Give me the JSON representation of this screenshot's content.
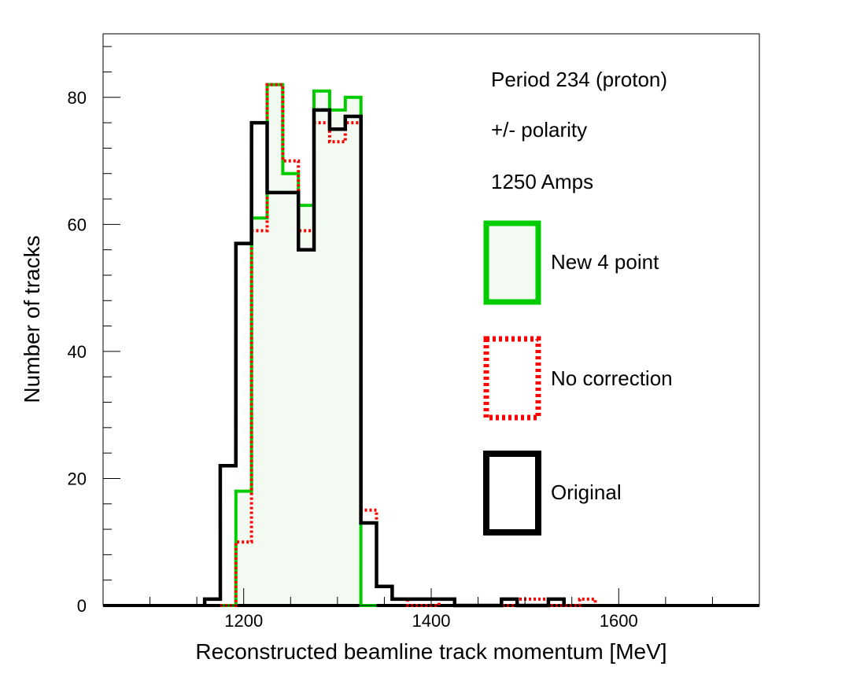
{
  "chart_data": {
    "type": "histogram",
    "xlabel": "Reconstructed beamline track momentum [MeV]",
    "ylabel": "Number of tracks",
    "xlim": [
      1050,
      1750
    ],
    "ylim": [
      0,
      90
    ],
    "grid": false,
    "legend_position": "right",
    "bin_width": 16.67,
    "x_ticks": [
      1200,
      1400,
      1600
    ],
    "y_ticks": [
      0,
      20,
      40,
      60,
      80
    ],
    "annotations": [
      "Period 234 (proton)",
      "+/- polarity",
      "1250 Amps"
    ],
    "series": [
      {
        "name": "New 4 point",
        "color": "#00cc00",
        "fill": "#f2faf2",
        "style": "solid-filled",
        "bins": [
          {
            "x": 1183.3,
            "y": 0
          },
          {
            "x": 1200.0,
            "y": 18
          },
          {
            "x": 1216.7,
            "y": 61
          },
          {
            "x": 1233.3,
            "y": 82
          },
          {
            "x": 1250.0,
            "y": 68
          },
          {
            "x": 1266.7,
            "y": 63
          },
          {
            "x": 1283.3,
            "y": 81
          },
          {
            "x": 1300.0,
            "y": 78
          },
          {
            "x": 1316.7,
            "y": 80
          },
          {
            "x": 1333.3,
            "y": 0
          }
        ]
      },
      {
        "name": "No correction",
        "color": "#ff0000",
        "style": "dotted",
        "bins": [
          {
            "x": 1183.3,
            "y": 0
          },
          {
            "x": 1200.0,
            "y": 10
          },
          {
            "x": 1216.7,
            "y": 59
          },
          {
            "x": 1233.3,
            "y": 82
          },
          {
            "x": 1250.0,
            "y": 70
          },
          {
            "x": 1266.7,
            "y": 59
          },
          {
            "x": 1283.3,
            "y": 76
          },
          {
            "x": 1300.0,
            "y": 73
          },
          {
            "x": 1316.7,
            "y": 76
          },
          {
            "x": 1333.3,
            "y": 15
          },
          {
            "x": 1350.0,
            "y": 3
          },
          {
            "x": 1366.7,
            "y": 1
          },
          {
            "x": 1383.3,
            "y": 0
          },
          {
            "x": 1400.0,
            "y": 0
          },
          {
            "x": 1416.7,
            "y": 1
          },
          {
            "x": 1500.0,
            "y": 1
          },
          {
            "x": 1516.7,
            "y": 1
          },
          {
            "x": 1566.7,
            "y": 1
          }
        ]
      },
      {
        "name": "Original",
        "color": "#000000",
        "style": "solid",
        "bins": [
          {
            "x": 1166.7,
            "y": 1
          },
          {
            "x": 1183.3,
            "y": 22
          },
          {
            "x": 1200.0,
            "y": 57
          },
          {
            "x": 1216.7,
            "y": 76
          },
          {
            "x": 1233.3,
            "y": 65
          },
          {
            "x": 1250.0,
            "y": 65
          },
          {
            "x": 1266.7,
            "y": 56
          },
          {
            "x": 1283.3,
            "y": 78
          },
          {
            "x": 1300.0,
            "y": 75
          },
          {
            "x": 1316.7,
            "y": 77
          },
          {
            "x": 1333.3,
            "y": 13
          },
          {
            "x": 1350.0,
            "y": 3
          },
          {
            "x": 1366.7,
            "y": 1
          },
          {
            "x": 1383.3,
            "y": 1
          },
          {
            "x": 1400.0,
            "y": 1
          },
          {
            "x": 1416.7,
            "y": 1
          },
          {
            "x": 1483.3,
            "y": 1
          },
          {
            "x": 1533.3,
            "y": 1
          }
        ]
      }
    ]
  }
}
